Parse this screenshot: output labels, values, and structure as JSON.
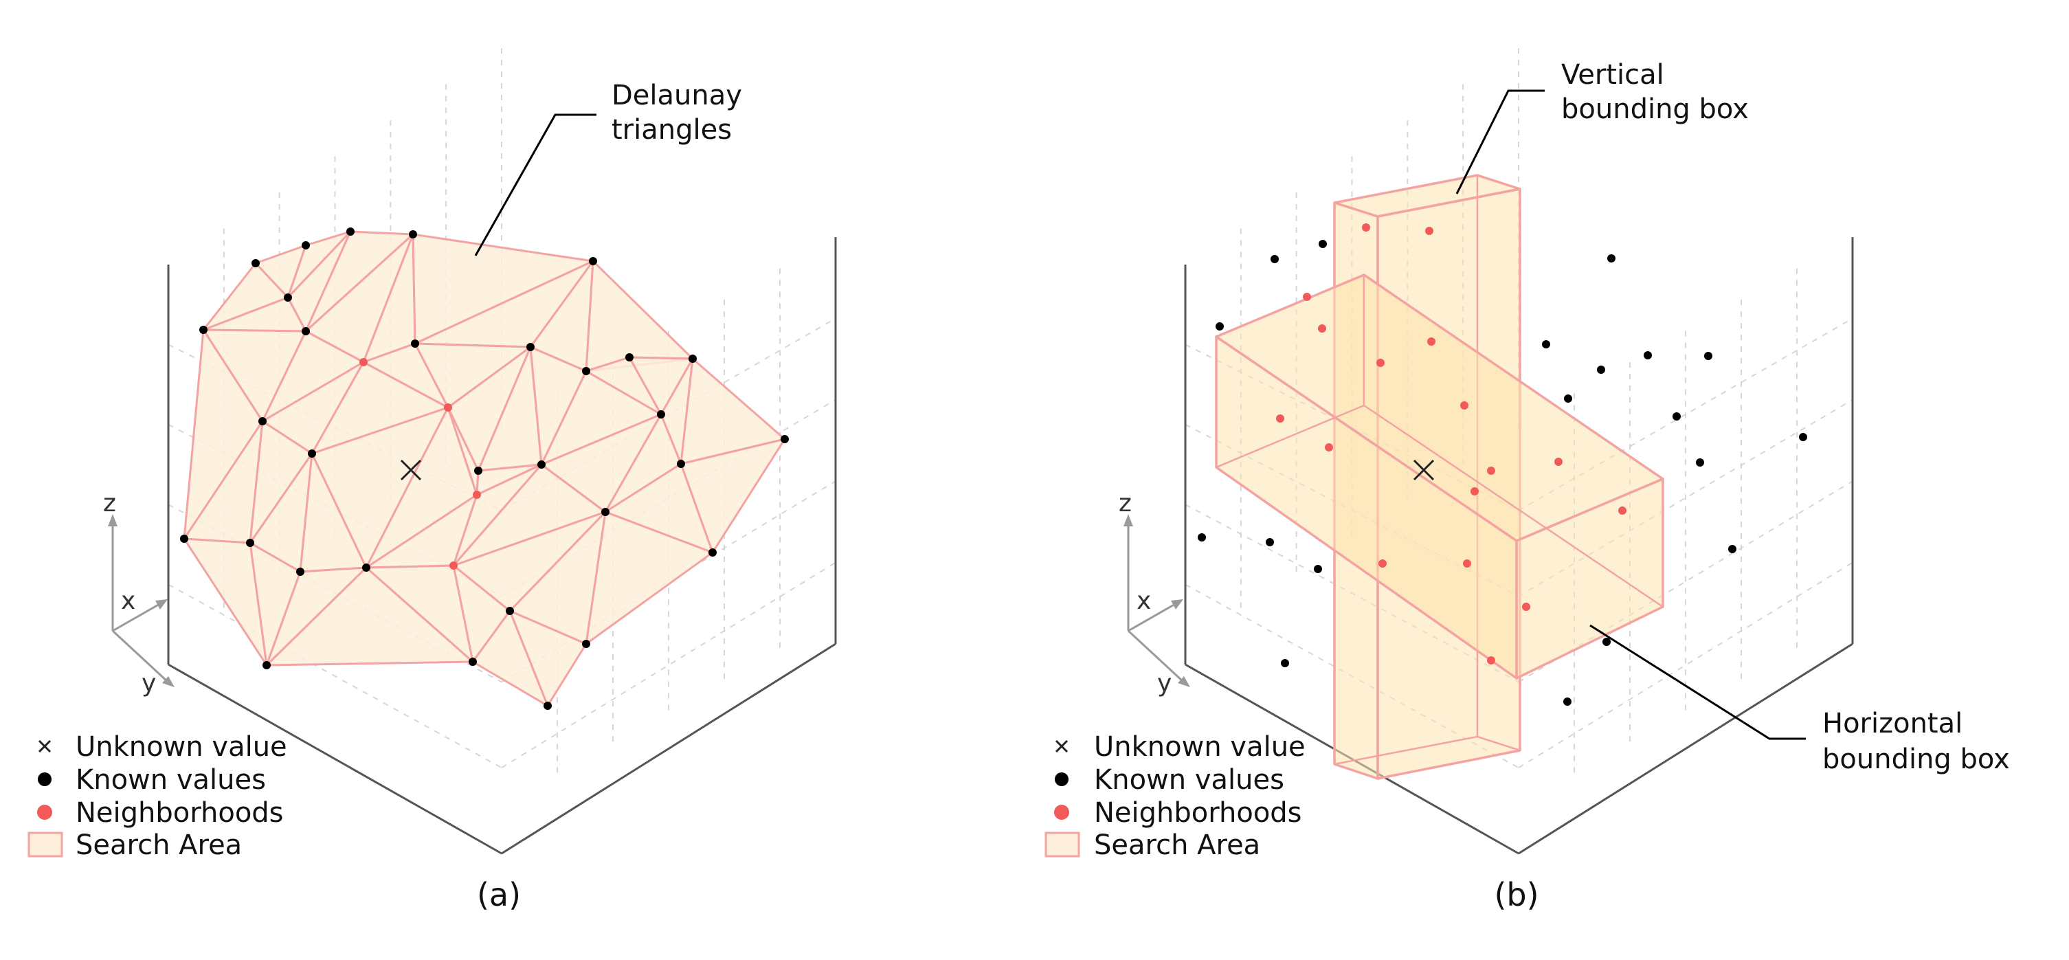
{
  "panels": [
    {
      "id": "a",
      "caption": "(a)",
      "annotation": [
        "Delaunay",
        "triangles"
      ],
      "axes": {
        "x": "x",
        "y": "y",
        "z": "z"
      }
    },
    {
      "id": "b",
      "caption": "(b)",
      "annotation_top": [
        "Vertical",
        "bounding box"
      ],
      "annotation_bottom": [
        "Horizontal",
        "bounding box"
      ],
      "axes": {
        "x": "x",
        "y": "y",
        "z": "z"
      }
    }
  ],
  "legend": {
    "unknown": "Unknown value",
    "known": "Known values",
    "neighbors": "Neighborhoods",
    "search": "Search Area"
  },
  "colors": {
    "known_point": "#000000",
    "neighbor_point": "#f25a5a",
    "search_area_fill": "#fdeedb",
    "search_area_edge": "#f4a3a3",
    "bounding_box_fill": "#fde3ae"
  },
  "icons": {
    "unknown_marker": "x-cross-marker",
    "known_marker": "black-dot",
    "neighbor_marker": "red-dot",
    "search_swatch": "peach-square"
  }
}
